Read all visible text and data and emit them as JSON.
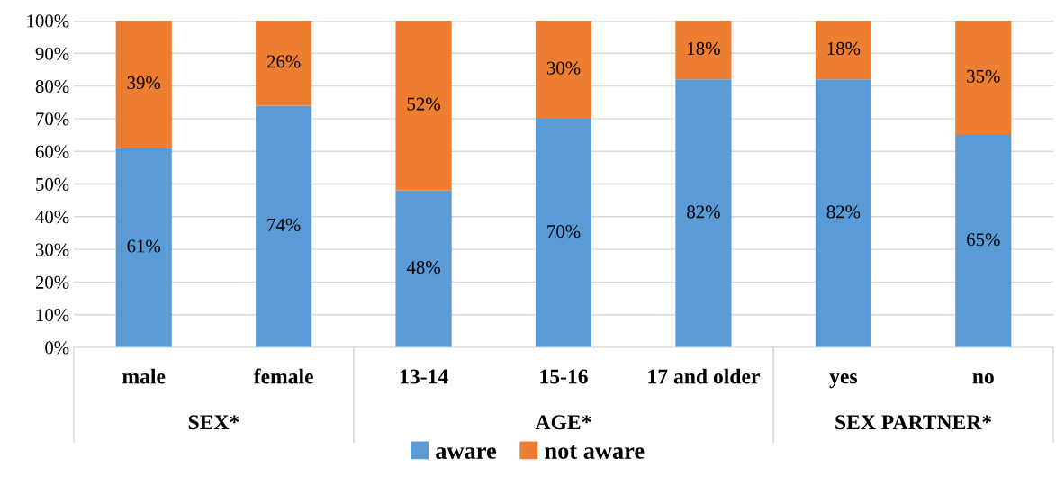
{
  "chart_data": {
    "type": "bar",
    "stacked": true,
    "categories": [
      "male",
      "female",
      "13-14",
      "15-16",
      "17 and older",
      "yes",
      "no"
    ],
    "series": [
      {
        "name": "aware",
        "color": "#5b9bd5",
        "values": [
          61,
          74,
          48,
          70,
          82,
          82,
          65
        ],
        "value_labels": [
          "61%",
          "74%",
          "48%",
          "70%",
          "82%",
          "82%",
          "65%"
        ]
      },
      {
        "name": "not aware",
        "color": "#ed7d31",
        "values": [
          39,
          26,
          52,
          30,
          18,
          18,
          35
        ],
        "value_labels": [
          "39%",
          "26%",
          "52%",
          "30%",
          "18%",
          "18%",
          "35%"
        ]
      }
    ],
    "ylim": [
      0,
      100
    ],
    "yticks": [
      {
        "value": 0,
        "label": "0%"
      },
      {
        "value": 10,
        "label": "10%"
      },
      {
        "value": 20,
        "label": "20%"
      },
      {
        "value": 30,
        "label": "30%"
      },
      {
        "value": 40,
        "label": "40%"
      },
      {
        "value": 50,
        "label": "50%"
      },
      {
        "value": 60,
        "label": "60%"
      },
      {
        "value": 70,
        "label": "70%"
      },
      {
        "value": 80,
        "label": "80%"
      },
      {
        "value": 90,
        "label": "90%"
      },
      {
        "value": 100,
        "label": "100%"
      }
    ],
    "grid": "y",
    "legend": "bottom",
    "annotations": [
      "SEX*",
      "AGE*",
      "SEX PARTNER*"
    ]
  }
}
